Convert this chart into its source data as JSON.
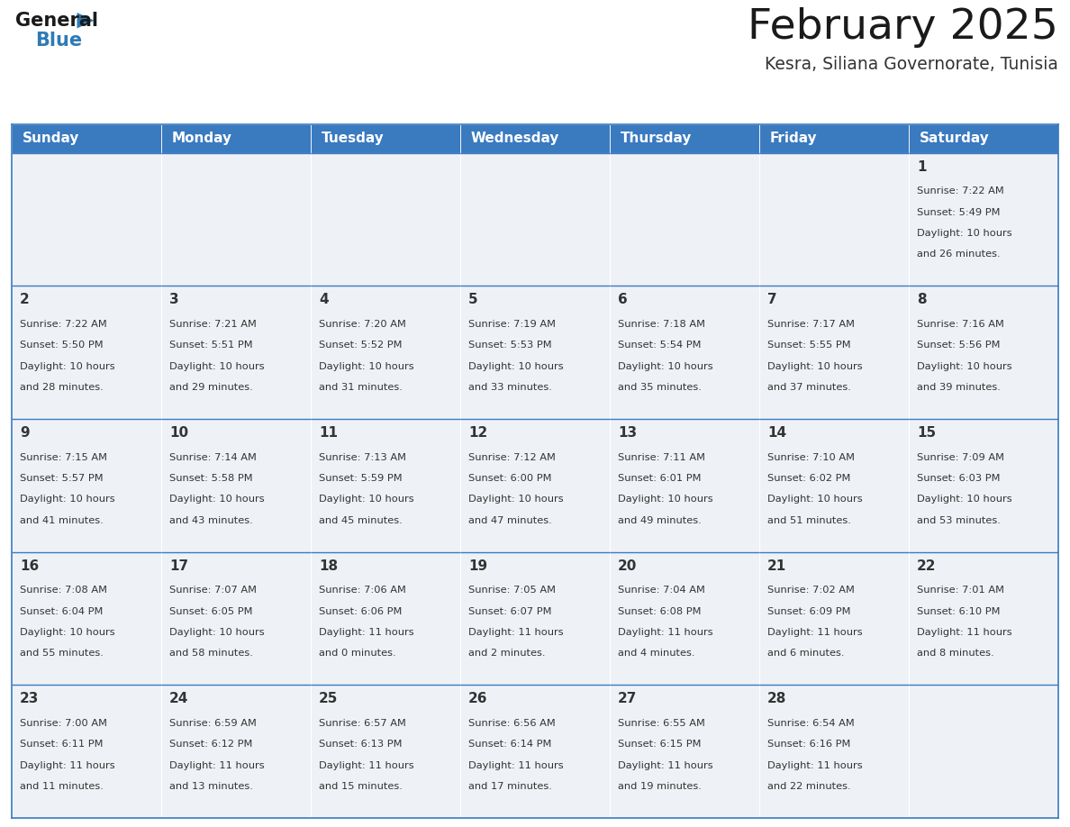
{
  "title": "February 2025",
  "subtitle": "Kesra, Siliana Governorate, Tunisia",
  "days_of_week": [
    "Sunday",
    "Monday",
    "Tuesday",
    "Wednesday",
    "Thursday",
    "Friday",
    "Saturday"
  ],
  "header_bg": "#3a7abf",
  "header_text": "#ffffff",
  "cell_bg": "#eef2f7",
  "border_color": "#3a7abf",
  "day_number_color": "#333333",
  "info_color": "#333333",
  "title_color": "#1a1a1a",
  "subtitle_color": "#333333",
  "logo_general_color": "#1a1a1a",
  "logo_blue_color": "#2e7ab5",
  "calendar_data": [
    [
      null,
      null,
      null,
      null,
      null,
      null,
      {
        "day": 1,
        "sunrise": "7:22 AM",
        "sunset": "5:49 PM",
        "daylight": "10 hours and 26 minutes"
      }
    ],
    [
      {
        "day": 2,
        "sunrise": "7:22 AM",
        "sunset": "5:50 PM",
        "daylight": "10 hours and 28 minutes"
      },
      {
        "day": 3,
        "sunrise": "7:21 AM",
        "sunset": "5:51 PM",
        "daylight": "10 hours and 29 minutes"
      },
      {
        "day": 4,
        "sunrise": "7:20 AM",
        "sunset": "5:52 PM",
        "daylight": "10 hours and 31 minutes"
      },
      {
        "day": 5,
        "sunrise": "7:19 AM",
        "sunset": "5:53 PM",
        "daylight": "10 hours and 33 minutes"
      },
      {
        "day": 6,
        "sunrise": "7:18 AM",
        "sunset": "5:54 PM",
        "daylight": "10 hours and 35 minutes"
      },
      {
        "day": 7,
        "sunrise": "7:17 AM",
        "sunset": "5:55 PM",
        "daylight": "10 hours and 37 minutes"
      },
      {
        "day": 8,
        "sunrise": "7:16 AM",
        "sunset": "5:56 PM",
        "daylight": "10 hours and 39 minutes"
      }
    ],
    [
      {
        "day": 9,
        "sunrise": "7:15 AM",
        "sunset": "5:57 PM",
        "daylight": "10 hours and 41 minutes"
      },
      {
        "day": 10,
        "sunrise": "7:14 AM",
        "sunset": "5:58 PM",
        "daylight": "10 hours and 43 minutes"
      },
      {
        "day": 11,
        "sunrise": "7:13 AM",
        "sunset": "5:59 PM",
        "daylight": "10 hours and 45 minutes"
      },
      {
        "day": 12,
        "sunrise": "7:12 AM",
        "sunset": "6:00 PM",
        "daylight": "10 hours and 47 minutes"
      },
      {
        "day": 13,
        "sunrise": "7:11 AM",
        "sunset": "6:01 PM",
        "daylight": "10 hours and 49 minutes"
      },
      {
        "day": 14,
        "sunrise": "7:10 AM",
        "sunset": "6:02 PM",
        "daylight": "10 hours and 51 minutes"
      },
      {
        "day": 15,
        "sunrise": "7:09 AM",
        "sunset": "6:03 PM",
        "daylight": "10 hours and 53 minutes"
      }
    ],
    [
      {
        "day": 16,
        "sunrise": "7:08 AM",
        "sunset": "6:04 PM",
        "daylight": "10 hours and 55 minutes"
      },
      {
        "day": 17,
        "sunrise": "7:07 AM",
        "sunset": "6:05 PM",
        "daylight": "10 hours and 58 minutes"
      },
      {
        "day": 18,
        "sunrise": "7:06 AM",
        "sunset": "6:06 PM",
        "daylight": "11 hours and 0 minutes"
      },
      {
        "day": 19,
        "sunrise": "7:05 AM",
        "sunset": "6:07 PM",
        "daylight": "11 hours and 2 minutes"
      },
      {
        "day": 20,
        "sunrise": "7:04 AM",
        "sunset": "6:08 PM",
        "daylight": "11 hours and 4 minutes"
      },
      {
        "day": 21,
        "sunrise": "7:02 AM",
        "sunset": "6:09 PM",
        "daylight": "11 hours and 6 minutes"
      },
      {
        "day": 22,
        "sunrise": "7:01 AM",
        "sunset": "6:10 PM",
        "daylight": "11 hours and 8 minutes"
      }
    ],
    [
      {
        "day": 23,
        "sunrise": "7:00 AM",
        "sunset": "6:11 PM",
        "daylight": "11 hours and 11 minutes"
      },
      {
        "day": 24,
        "sunrise": "6:59 AM",
        "sunset": "6:12 PM",
        "daylight": "11 hours and 13 minutes"
      },
      {
        "day": 25,
        "sunrise": "6:57 AM",
        "sunset": "6:13 PM",
        "daylight": "11 hours and 15 minutes"
      },
      {
        "day": 26,
        "sunrise": "6:56 AM",
        "sunset": "6:14 PM",
        "daylight": "11 hours and 17 minutes"
      },
      {
        "day": 27,
        "sunrise": "6:55 AM",
        "sunset": "6:15 PM",
        "daylight": "11 hours and 19 minutes"
      },
      {
        "day": 28,
        "sunrise": "6:54 AM",
        "sunset": "6:16 PM",
        "daylight": "11 hours and 22 minutes"
      },
      null
    ]
  ]
}
